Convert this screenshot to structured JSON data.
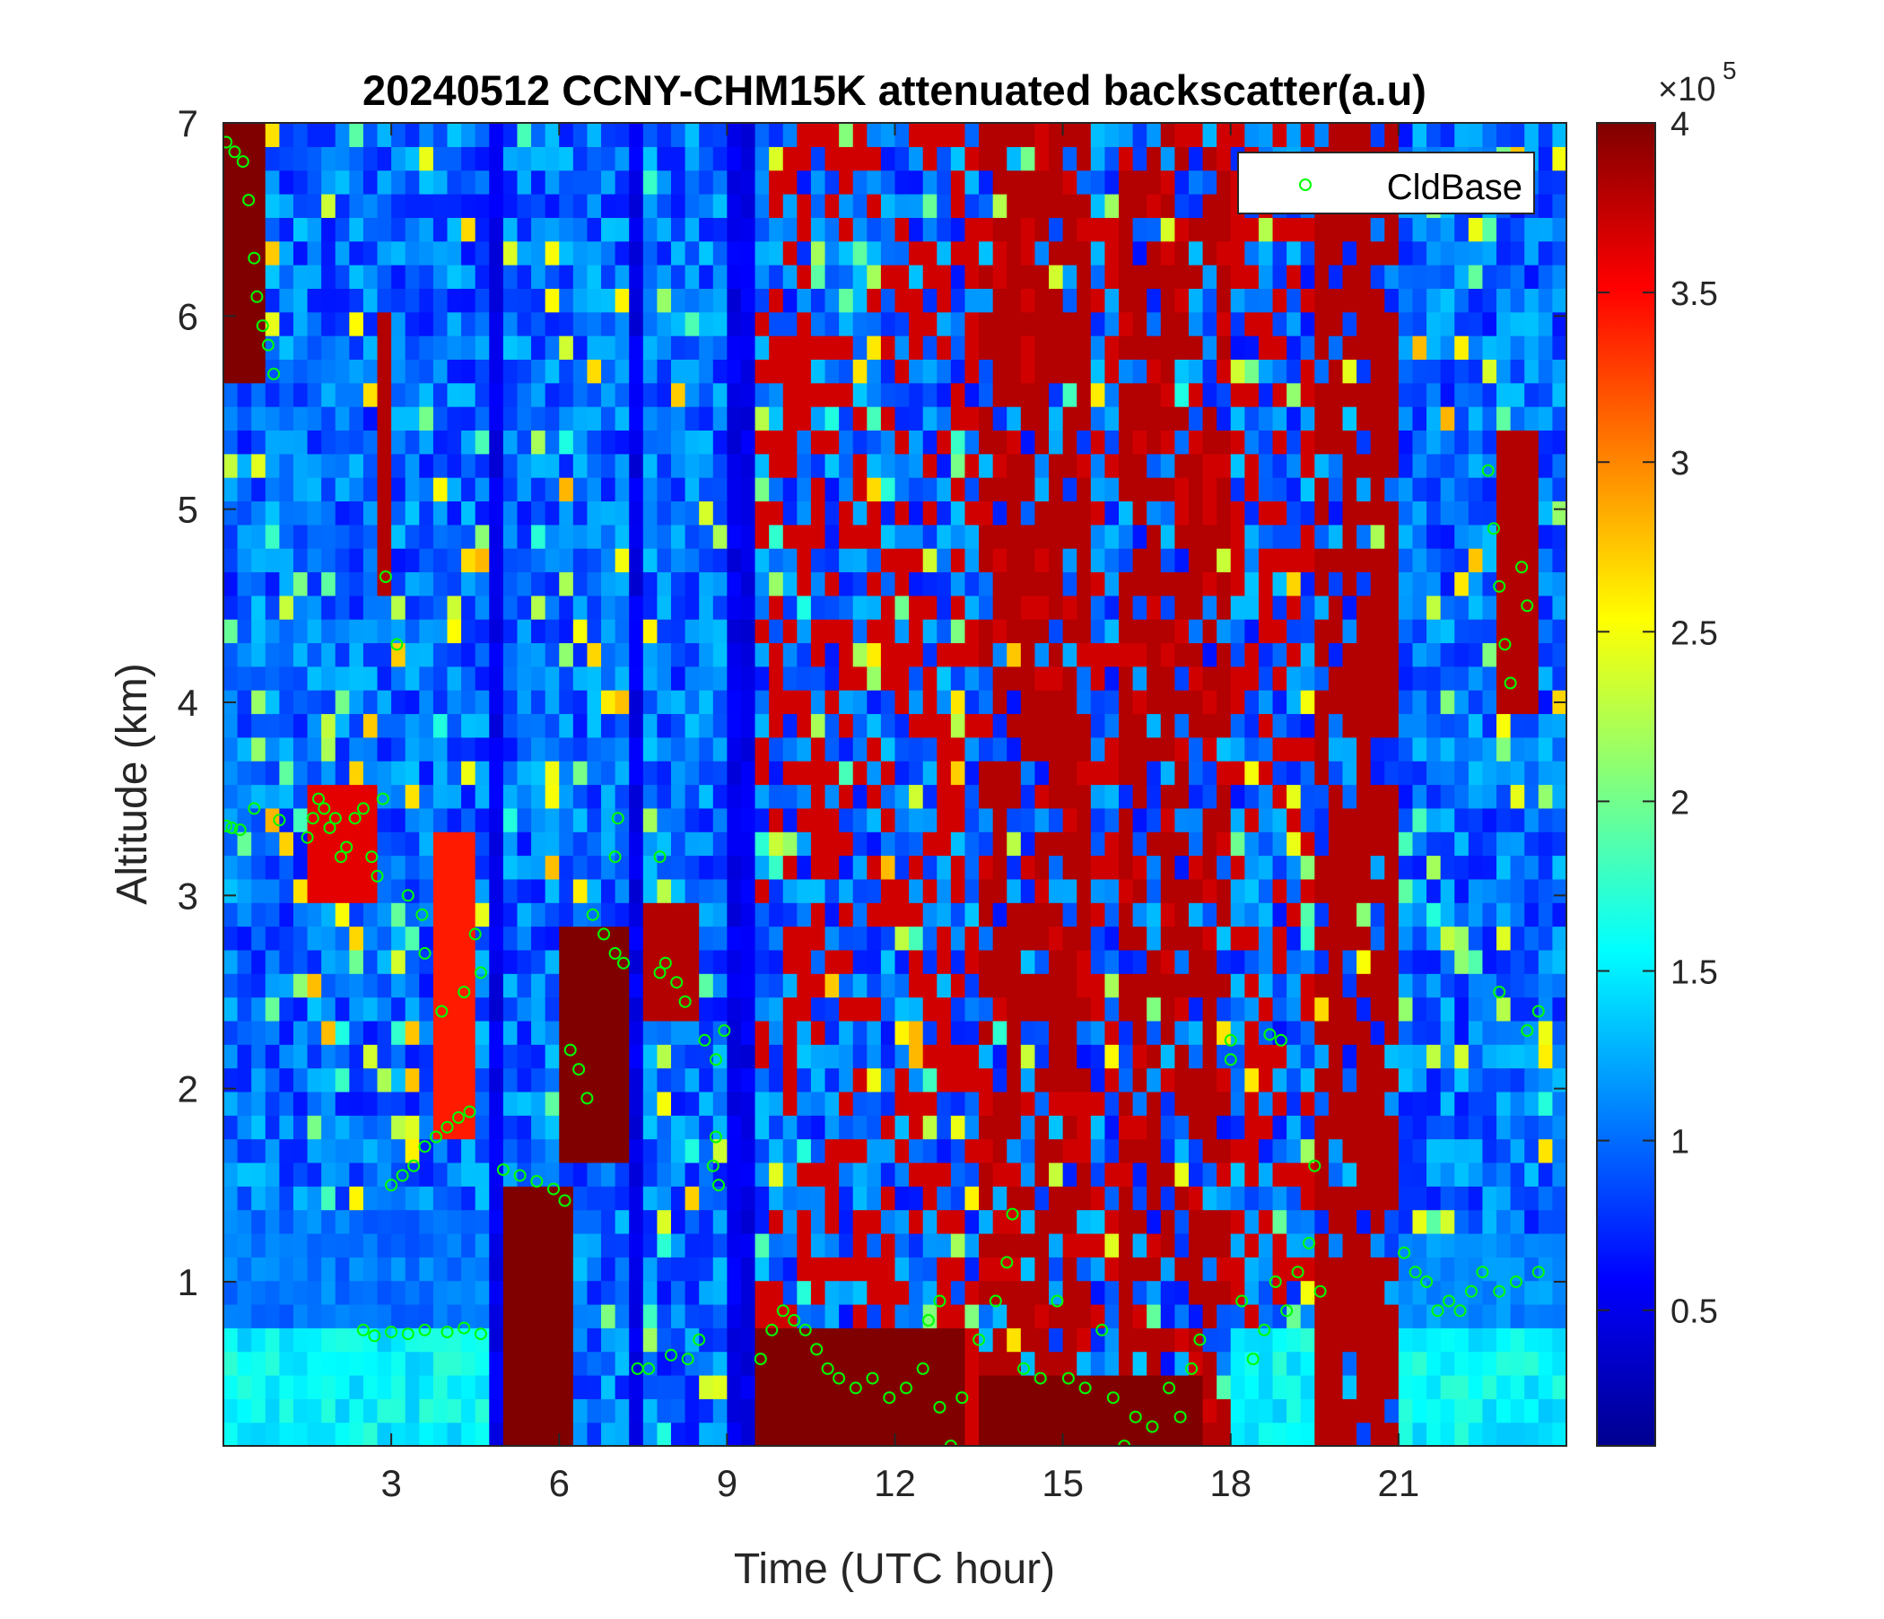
{
  "figure": {
    "title": "20240512 CCNY-CHM15K attenuated backscatter(a.u)"
  },
  "chart_data": {
    "type": "heatmap",
    "title": "20240512 CCNY-CHM15K attenuated backscatter(a.u)",
    "xlabel": "Time (UTC hour)",
    "ylabel": "Altitude (km)",
    "xlim": [
      0,
      24
    ],
    "ylim": [
      0.15,
      7
    ],
    "xticks": [
      3,
      6,
      9,
      12,
      15,
      18,
      21
    ],
    "xtick_labels": [
      "3",
      "6",
      "9",
      "12",
      "15",
      "18",
      "21"
    ],
    "yticks": [
      1,
      2,
      3,
      4,
      5,
      6,
      7
    ],
    "ytick_labels": [
      "1",
      "2",
      "3",
      "4",
      "5",
      "6",
      "7"
    ],
    "colormap": "jet",
    "colorbar": {
      "range": [
        10000,
        400000
      ],
      "ticks": [
        0.5,
        1,
        1.5,
        2,
        2.5,
        3,
        3.5,
        4
      ],
      "tick_labels": [
        "0.5",
        "1",
        "1.5",
        "2",
        "2.5",
        "3",
        "3.5",
        "4"
      ],
      "exponent_label": "×10",
      "exponent_power": "5"
    },
    "legend": {
      "entries": [
        "CldBase"
      ],
      "placement": "top-right"
    },
    "series": [
      {
        "name": "CldBase",
        "marker": "open-circle",
        "color": "#00ff00",
        "points": [
          [
            0.05,
            6.9
          ],
          [
            0.2,
            6.85
          ],
          [
            0.35,
            6.8
          ],
          [
            0.45,
            6.6
          ],
          [
            0.55,
            6.3
          ],
          [
            0.6,
            6.1
          ],
          [
            0.7,
            5.95
          ],
          [
            0.8,
            5.85
          ],
          [
            0.9,
            5.7
          ],
          [
            0.05,
            3.36
          ],
          [
            0.15,
            3.35
          ],
          [
            0.3,
            3.34
          ],
          [
            0.55,
            3.45
          ],
          [
            1.0,
            3.39
          ],
          [
            1.5,
            3.3
          ],
          [
            1.6,
            3.4
          ],
          [
            1.7,
            3.5
          ],
          [
            1.8,
            3.45
          ],
          [
            1.9,
            3.35
          ],
          [
            2.0,
            3.4
          ],
          [
            2.1,
            3.2
          ],
          [
            2.2,
            3.25
          ],
          [
            2.35,
            3.4
          ],
          [
            2.5,
            3.45
          ],
          [
            2.65,
            3.2
          ],
          [
            2.75,
            3.1
          ],
          [
            2.85,
            3.5
          ],
          [
            2.9,
            4.65
          ],
          [
            3.1,
            4.3
          ],
          [
            3.3,
            3.0
          ],
          [
            3.55,
            2.9
          ],
          [
            3.6,
            2.7
          ],
          [
            3.0,
            1.5
          ],
          [
            3.2,
            1.55
          ],
          [
            3.4,
            1.6
          ],
          [
            3.6,
            1.7
          ],
          [
            3.8,
            1.75
          ],
          [
            4.0,
            1.8
          ],
          [
            4.2,
            1.85
          ],
          [
            4.4,
            1.88
          ],
          [
            3.9,
            2.4
          ],
          [
            4.3,
            2.5
          ],
          [
            4.5,
            2.8
          ],
          [
            4.6,
            2.6
          ],
          [
            2.5,
            0.75
          ],
          [
            2.7,
            0.72
          ],
          [
            3.0,
            0.74
          ],
          [
            3.3,
            0.73
          ],
          [
            3.6,
            0.75
          ],
          [
            4.0,
            0.74
          ],
          [
            4.3,
            0.76
          ],
          [
            4.6,
            0.73
          ],
          [
            5.0,
            1.58
          ],
          [
            5.3,
            1.55
          ],
          [
            5.6,
            1.52
          ],
          [
            5.9,
            1.48
          ],
          [
            6.1,
            1.42
          ],
          [
            6.2,
            2.2
          ],
          [
            6.35,
            2.1
          ],
          [
            6.5,
            1.95
          ],
          [
            6.6,
            2.9
          ],
          [
            6.8,
            2.8
          ],
          [
            7.0,
            2.7
          ],
          [
            7.15,
            2.65
          ],
          [
            7.0,
            3.2
          ],
          [
            7.05,
            3.4
          ],
          [
            7.4,
            0.55
          ],
          [
            7.6,
            0.55
          ],
          [
            7.8,
            2.6
          ],
          [
            7.9,
            2.65
          ],
          [
            8.1,
            2.55
          ],
          [
            8.25,
            2.45
          ],
          [
            7.8,
            3.2
          ],
          [
            8.0,
            0.62
          ],
          [
            8.3,
            0.6
          ],
          [
            8.5,
            0.7
          ],
          [
            8.6,
            2.25
          ],
          [
            8.8,
            2.15
          ],
          [
            8.95,
            2.3
          ],
          [
            8.75,
            1.6
          ],
          [
            8.85,
            1.5
          ],
          [
            8.8,
            1.75
          ],
          [
            9.6,
            0.6
          ],
          [
            9.8,
            0.75
          ],
          [
            10.0,
            0.85
          ],
          [
            10.2,
            0.8
          ],
          [
            10.4,
            0.75
          ],
          [
            10.6,
            0.65
          ],
          [
            10.8,
            0.55
          ],
          [
            11.0,
            0.5
          ],
          [
            11.3,
            0.45
          ],
          [
            11.6,
            0.5
          ],
          [
            11.9,
            0.4
          ],
          [
            12.2,
            0.45
          ],
          [
            12.5,
            0.55
          ],
          [
            12.8,
            0.35
          ],
          [
            13.0,
            0.15
          ],
          [
            13.2,
            0.4
          ],
          [
            12.6,
            0.8
          ],
          [
            12.8,
            0.9
          ],
          [
            13.5,
            0.7
          ],
          [
            13.8,
            0.9
          ],
          [
            14.0,
            1.1
          ],
          [
            14.1,
            1.35
          ],
          [
            14.3,
            0.55
          ],
          [
            14.6,
            0.5
          ],
          [
            14.9,
            0.9
          ],
          [
            15.1,
            0.5
          ],
          [
            15.4,
            0.45
          ],
          [
            15.7,
            0.75
          ],
          [
            15.9,
            0.4
          ],
          [
            16.1,
            0.15
          ],
          [
            16.3,
            0.3
          ],
          [
            16.6,
            0.25
          ],
          [
            16.9,
            0.45
          ],
          [
            17.1,
            0.3
          ],
          [
            17.3,
            0.55
          ],
          [
            17.45,
            0.7
          ],
          [
            18.0,
            2.25
          ],
          [
            18.0,
            2.15
          ],
          [
            18.7,
            2.28
          ],
          [
            18.9,
            2.25
          ],
          [
            19.5,
            1.6
          ],
          [
            18.2,
            0.9
          ],
          [
            18.4,
            0.6
          ],
          [
            18.6,
            0.75
          ],
          [
            18.8,
            1.0
          ],
          [
            19.0,
            0.85
          ],
          [
            19.2,
            1.05
          ],
          [
            19.4,
            1.2
          ],
          [
            19.6,
            0.95
          ],
          [
            21.1,
            1.15
          ],
          [
            21.3,
            1.05
          ],
          [
            21.5,
            1.0
          ],
          [
            21.7,
            0.85
          ],
          [
            21.9,
            0.9
          ],
          [
            22.1,
            0.85
          ],
          [
            22.3,
            0.95
          ],
          [
            22.5,
            1.05
          ],
          [
            22.8,
            0.95
          ],
          [
            23.1,
            1.0
          ],
          [
            23.5,
            1.05
          ],
          [
            22.6,
            5.2
          ],
          [
            22.7,
            4.9
          ],
          [
            22.8,
            4.6
          ],
          [
            22.9,
            4.3
          ],
          [
            23.0,
            4.1
          ],
          [
            23.2,
            4.7
          ],
          [
            23.3,
            4.5
          ],
          [
            22.8,
            2.5
          ],
          [
            23.3,
            2.3
          ],
          [
            23.5,
            2.4
          ]
        ]
      }
    ]
  }
}
